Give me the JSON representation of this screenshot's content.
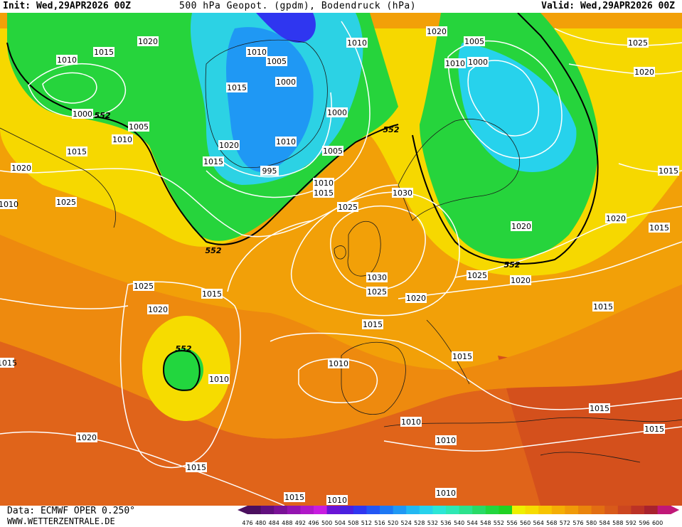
{
  "header": {
    "init": "Init: Wed,29APR2026 00Z",
    "title": "500 hPa Geopot. (gpdm), Bodendruck (hPa)",
    "valid": "Valid: Wed,29APR2026 00Z"
  },
  "footer": {
    "data_source": "Data: ECMWF OPER 0.250°",
    "website": "WWW.WETTERZENTRALE.DE"
  },
  "legend": {
    "values": [
      "476",
      "480",
      "484",
      "488",
      "492",
      "496",
      "500",
      "504",
      "508",
      "512",
      "516",
      "520",
      "524",
      "528",
      "532",
      "536",
      "540",
      "544",
      "548",
      "552",
      "556",
      "560",
      "564",
      "568",
      "572",
      "576",
      "580",
      "584",
      "588",
      "592",
      "596",
      "600"
    ],
    "colors": [
      "#4b0f5e",
      "#620f7e",
      "#7a1296",
      "#9414b0",
      "#b018c8",
      "#c81ce0",
      "#6a14d6",
      "#4a20e0",
      "#2f36f0",
      "#2356f4",
      "#1c78f4",
      "#1f98f4",
      "#22b8f2",
      "#27d2ec",
      "#2ce6d6",
      "#2ee8b4",
      "#2ce28c",
      "#28da66",
      "#22d63e",
      "#20d222",
      "#eef000",
      "#f6dc00",
      "#f7c400",
      "#f4ae04",
      "#f09a08",
      "#ea840c",
      "#e26e12",
      "#d85a1a",
      "#cc4620",
      "#bc3226",
      "#a8222e",
      "#c01878"
    ]
  },
  "isobar_labels": [
    "1010",
    "1015",
    "1020",
    "1010",
    "1000",
    "1005",
    "1010",
    "1015",
    "1020",
    "1025",
    "995",
    "1000",
    "1005",
    "1010",
    "1015",
    "1025",
    "1030",
    "1030",
    "1025",
    "1020",
    "1015",
    "1025",
    "1020",
    "1015",
    "1010",
    "1015",
    "1020",
    "1010",
    "1015",
    "1005",
    "1000",
    "1010",
    "1020",
    "1025",
    "1020",
    "1015",
    "1015",
    "1020",
    "1020",
    "1025",
    "1015",
    "1015",
    "1010",
    "1010",
    "1010",
    "1010",
    "1015",
    "1020",
    "1015",
    "1015",
    "1015",
    "1020",
    "1025",
    "1015",
    "1005",
    "1000",
    "1015",
    "1010",
    "1010",
    "1010"
  ],
  "contour_labels": [
    "552",
    "552",
    "552",
    "552",
    "552"
  ]
}
